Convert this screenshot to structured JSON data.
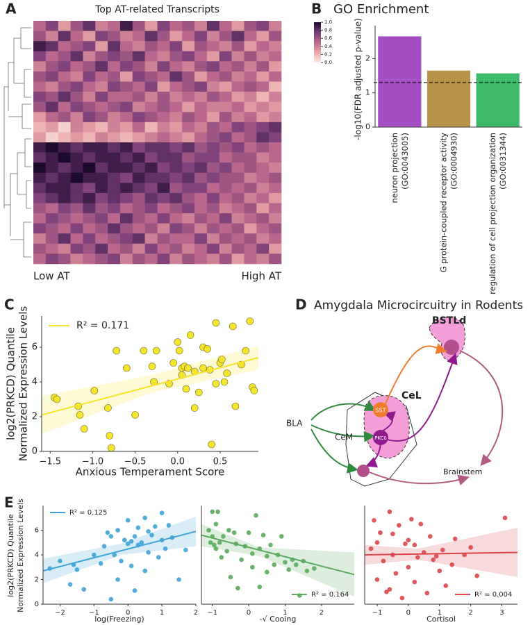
{
  "chart_data": [
    {
      "type": "heatmap",
      "panel_label": "A",
      "title": "Top AT-related Transcripts",
      "annotations": [
        "Low AT",
        "High AT"
      ],
      "clim": [
        0,
        1
      ],
      "cticks": [
        {
          "value": 0,
          "label": "0.0"
        },
        0.2,
        0.4,
        0.6,
        0.8,
        {
          "value": 1,
          "label": "1.0"
        }
      ],
      "colormap": [
        "#fcebe6",
        "#eaa7a8",
        "#b9678c",
        "#733a74",
        "#1d0b2c"
      ],
      "values": [
        [
          0.5,
          0.7,
          0.3,
          0.6,
          0.8,
          0.4,
          0.5,
          0.9,
          0.6,
          0.3,
          0.7,
          0.5,
          0.6,
          0.4,
          0.8,
          0.5,
          0.3,
          0.6,
          0.7,
          0.4
        ],
        [
          0.6,
          0.4,
          0.8,
          0.5,
          0.3,
          0.7,
          0.6,
          0.4,
          0.5,
          0.8,
          0.6,
          0.3,
          0.5,
          0.7,
          0.4,
          0.6,
          0.8,
          0.5,
          0.3,
          0.6
        ],
        [
          0.9,
          0.8,
          0.5,
          0.6,
          0.7,
          0.3,
          0.8,
          0.5,
          0.4,
          0.6,
          0.5,
          0.7,
          0.3,
          0.6,
          0.5,
          0.4,
          0.6,
          0.3,
          0.5,
          0.4
        ],
        [
          0.7,
          0.5,
          0.6,
          0.8,
          0.4,
          0.6,
          0.7,
          0.6,
          0.8,
          0.5,
          0.4,
          0.6,
          0.7,
          0.5,
          0.3,
          0.7,
          0.4,
          0.6,
          0.4,
          0.5
        ],
        [
          0.4,
          0.6,
          0.7,
          0.5,
          0.6,
          0.8,
          0.5,
          0.7,
          0.6,
          0.4,
          0.7,
          0.5,
          0.4,
          0.6,
          0.7,
          0.5,
          0.6,
          0.4,
          0.6,
          0.3
        ],
        [
          0.6,
          0.7,
          0.5,
          0.4,
          0.7,
          0.5,
          0.6,
          0.3,
          0.7,
          0.6,
          0.5,
          0.8,
          0.6,
          0.3,
          0.5,
          0.6,
          0.4,
          0.5,
          0.3,
          0.5
        ],
        [
          0.5,
          0.4,
          0.6,
          0.7,
          0.5,
          0.4,
          0.7,
          0.6,
          0.5,
          0.7,
          0.3,
          0.5,
          0.6,
          0.7,
          0.4,
          0.3,
          0.5,
          0.6,
          0.5,
          0.2
        ],
        [
          0.7,
          0.6,
          0.8,
          0.6,
          0.4,
          0.7,
          0.5,
          0.5,
          0.6,
          0.4,
          0.6,
          0.4,
          0.5,
          0.4,
          0.6,
          0.5,
          0.3,
          0.4,
          0.2,
          0.4
        ],
        [
          0.6,
          0.8,
          0.5,
          0.7,
          0.6,
          0.5,
          0.6,
          0.7,
          0.4,
          0.5,
          0.6,
          0.5,
          0.3,
          0.5,
          0.4,
          0.4,
          0.5,
          0.3,
          0.4,
          0.3
        ],
        [
          0.3,
          0.5,
          0.6,
          0.4,
          0.7,
          0.6,
          0.4,
          0.5,
          0.7,
          0.6,
          0.5,
          0.4,
          0.6,
          0.5,
          0.3,
          0.6,
          0.4,
          0.5,
          0.3,
          0.4
        ],
        [
          0.2,
          0.3,
          0.1,
          0.4,
          0.3,
          0.2,
          0.4,
          0.3,
          0.5,
          0.2,
          0.4,
          0.3,
          0.5,
          0.4,
          0.6,
          0.5,
          0.7,
          0.6,
          0.7,
          0.8
        ],
        [
          0.3,
          0.1,
          0.2,
          0.3,
          0.2,
          0.4,
          0.3,
          0.2,
          0.3,
          0.4,
          0.5,
          0.4,
          0.3,
          0.5,
          0.6,
          0.7,
          0.5,
          0.6,
          0.8,
          0.7
        ],
        [
          0.9,
          1,
          0.9,
          0.8,
          0.9,
          0.9,
          0.8,
          0.9,
          0.7,
          0.8,
          0.8,
          0.7,
          0.8,
          0.6,
          0.7,
          0.6,
          0.7,
          0.5,
          0.6,
          0.5
        ],
        [
          0.8,
          0.9,
          1,
          0.9,
          0.8,
          0.9,
          0.9,
          0.8,
          0.9,
          0.7,
          0.8,
          0.8,
          0.6,
          0.7,
          0.7,
          0.5,
          0.6,
          0.6,
          0.4,
          0.5
        ],
        [
          1,
          0.9,
          0.8,
          0.9,
          1,
          0.8,
          0.9,
          0.9,
          0.8,
          0.9,
          0.7,
          0.8,
          0.7,
          0.8,
          0.6,
          0.7,
          0.5,
          0.6,
          0.5,
          0.4
        ],
        [
          0.9,
          0.8,
          0.9,
          1,
          0.9,
          0.9,
          0.8,
          0.7,
          0.9,
          0.8,
          0.8,
          0.7,
          0.8,
          0.6,
          0.7,
          0.6,
          0.6,
          0.4,
          0.5,
          0.6
        ],
        [
          0.8,
          0.9,
          0.9,
          0.8,
          0.7,
          0.9,
          0.8,
          0.9,
          0.8,
          0.7,
          0.9,
          0.6,
          0.7,
          0.7,
          0.5,
          0.6,
          0.5,
          0.6,
          0.4,
          0.5
        ],
        [
          0.7,
          0.8,
          0.9,
          0.8,
          0.9,
          0.7,
          0.8,
          0.7,
          0.6,
          0.8,
          0.7,
          0.8,
          0.6,
          0.5,
          0.7,
          0.5,
          0.6,
          0.4,
          0.5,
          0.3
        ],
        [
          0.6,
          0.5,
          0.7,
          0.6,
          0.8,
          0.6,
          0.7,
          0.5,
          0.6,
          0.7,
          0.5,
          0.6,
          0.7,
          0.5,
          0.6,
          0.4,
          0.5,
          0.6,
          0.3,
          0.5
        ],
        [
          0.5,
          0.7,
          0.6,
          0.5,
          0.6,
          0.7,
          0.5,
          0.8,
          0.6,
          0.5,
          0.7,
          0.5,
          0.4,
          0.6,
          0.5,
          0.7,
          0.4,
          0.5,
          0.6,
          0.4
        ],
        [
          0.7,
          0.6,
          0.5,
          0.7,
          0.5,
          0.6,
          0.8,
          0.6,
          0.5,
          0.6,
          0.4,
          0.7,
          0.6,
          0.4,
          0.6,
          0.5,
          0.6,
          0.3,
          0.5,
          0.6
        ],
        [
          0.4,
          0.6,
          0.8,
          0.5,
          0.7,
          0.5,
          0.6,
          0.7,
          0.8,
          0.4,
          0.6,
          0.5,
          0.5,
          0.7,
          0.4,
          0.6,
          0.5,
          0.6,
          0.4,
          0.5
        ],
        [
          0.6,
          0.5,
          0.4,
          0.7,
          0.6,
          0.8,
          0.5,
          0.6,
          0.4,
          0.7,
          0.5,
          0.6,
          0.4,
          0.5,
          0.7,
          0.4,
          0.6,
          0.5,
          0.7,
          0.3
        ],
        [
          0.5,
          0.7,
          0.6,
          0.4,
          0.5,
          0.6,
          0.7,
          0.4,
          0.6,
          0.5,
          0.7,
          0.4,
          0.6,
          0.5,
          0.4,
          0.6,
          0.3,
          0.5,
          0.4,
          0.6
        ]
      ]
    },
    {
      "type": "bar",
      "panel_label": "B",
      "title": "GO Enrichment",
      "ylabel": "-log10(FDR adjusted p-value)",
      "categories": [
        [
          "neuron projection",
          "(GO:0043005)"
        ],
        [
          "G protein-coupled receptor activity",
          "(GO:0004930)"
        ],
        [
          "regulation of cell projection organization",
          "(GO:0031344)"
        ]
      ],
      "values": [
        2.65,
        1.65,
        1.57
      ],
      "colors": [
        "#a34fc2",
        "#b8944a",
        "#3dbb6b"
      ],
      "threshold": 1.3,
      "ylim": [
        0,
        2.8
      ],
      "yticks": [
        0,
        1,
        2
      ]
    },
    {
      "type": "scatter",
      "panel_label": "C",
      "xlabel": "Anxious Temperament Score",
      "ylabel": [
        "log2(PRKCD) Quantile",
        "Normalized Expression Levels"
      ],
      "legend_label": "R² = 0.171",
      "legend": "upper left",
      "color": "#f5e52e",
      "xlim": [
        -1.6,
        0.95
      ],
      "ylim": [
        0,
        7.8
      ],
      "xticks": [
        {
          "value": -1.5,
          "label": "−1.5"
        },
        {
          "value": -1,
          "label": "−1.0"
        },
        {
          "value": -0.5,
          "label": "−0.5"
        },
        {
          "value": 0,
          "label": "0.0"
        },
        0.5
      ],
      "yticks": [
        0,
        2,
        4,
        6
      ],
      "x": [
        -1.45,
        -1.42,
        -1.17,
        -1.15,
        -1.1,
        -0.98,
        -0.82,
        -0.78,
        -0.8,
        -0.72,
        -0.6,
        -0.5,
        -0.4,
        -0.3,
        -0.28,
        -0.25,
        -0.1,
        -0.05,
        0,
        0.02,
        0.05,
        0.05,
        0.08,
        0.1,
        0.12,
        0.15,
        0.2,
        0.2,
        0.25,
        0.3,
        0.3,
        0.35,
        0.38,
        0.4,
        0.45,
        0.45,
        0.5,
        0.52,
        0.55,
        0.58,
        0.65,
        0.68,
        0.75,
        0.8,
        0.85,
        0.88,
        0.9
      ],
      "y": [
        3.1,
        3,
        2.6,
        2.1,
        1.3,
        3.5,
        2.5,
        0.2,
        0.9,
        5.8,
        4.8,
        2.1,
        5.8,
        4.9,
        4,
        5.8,
        3.9,
        5.1,
        6.3,
        5.8,
        4.8,
        4.4,
        4.9,
        3.6,
        4.8,
        6.7,
        4.6,
        2.5,
        3.4,
        4.8,
        6,
        5.9,
        4.7,
        0.4,
        7.4,
        3.9,
        5.1,
        5.3,
        4,
        4.5,
        7.2,
        2.6,
        5,
        5.8,
        7.5,
        3.7,
        3.5
      ],
      "fit": {
        "x": [
          -1.6,
          0.95
        ],
        "y": [
          2.1,
          5.4
        ]
      },
      "band": {
        "x": [
          -1.6,
          -0.3,
          0.95
        ],
        "lower": [
          1.0,
          3.4,
          4.7
        ],
        "upper": [
          3.2,
          4.4,
          6.1
        ]
      }
    },
    {
      "type": "scatter",
      "panel_label": "E",
      "xlabel": "log(Freezing)",
      "ylabel": [
        "log2(PRKCD) Quantile",
        "Normalized Expression Levels"
      ],
      "legend_label": "R² = 0.125",
      "legend": "upper left",
      "color": "#3ea3d6",
      "xlim": [
        -2.5,
        2.0
      ],
      "ylim": [
        0,
        8
      ],
      "xticks": [
        {
          "value": -2,
          "label": "−2"
        },
        {
          "value": -1,
          "label": "−1"
        },
        0,
        1,
        2
      ],
      "yticks": [
        0,
        2,
        4,
        6
      ],
      "x": [
        -2.3,
        -2,
        -1.7,
        -1.6,
        -1.5,
        -1.3,
        -1,
        -0.8,
        -0.7,
        -0.6,
        -0.5,
        -0.4,
        -0.3,
        -0.3,
        -0.2,
        -0.1,
        0,
        0,
        0.1,
        0.2,
        0.2,
        0.3,
        0.3,
        0.4,
        0.5,
        0.5,
        0.6,
        0.7,
        0.8,
        0.9,
        1,
        1,
        1.1,
        1.2,
        1.3,
        1.5,
        1.7,
        -0.5,
        0.1,
        0.6
      ],
      "y": [
        2.9,
        3.5,
        1.6,
        3.2,
        2.8,
        1.2,
        4,
        3.3,
        4.7,
        5.8,
        5.5,
        4,
        2,
        6,
        3.5,
        5.2,
        4.9,
        6.8,
        5.1,
        5.5,
        1.1,
        6.2,
        4.8,
        5,
        7,
        2.7,
        4.2,
        5.6,
        6.3,
        3.8,
        5.2,
        7.4,
        4.5,
        6.4,
        5.4,
        2,
        4.4,
        0.4,
        3.1,
        5.9
      ],
      "fit": {
        "x": [
          -2.5,
          2.0
        ],
        "y": [
          2.7,
          5.9
        ]
      },
      "band": {
        "x": [
          -2.5,
          -0.2,
          2.0
        ],
        "lower": [
          1.7,
          4.0,
          4.7
        ],
        "upper": [
          3.7,
          4.9,
          7.1
        ]
      }
    },
    {
      "type": "scatter",
      "xlabel": "-√ Cooing",
      "legend_label": "R² = 0.164",
      "legend": "lower right",
      "color": "#5aaa5c",
      "xlim": [
        -1.3,
        2.9
      ],
      "ylim": [
        0,
        8
      ],
      "xticks": [
        {
          "value": -1,
          "label": "−1"
        },
        0,
        1,
        2
      ],
      "x": [
        -1.1,
        -1.05,
        -1,
        -1,
        -0.95,
        -0.9,
        -0.85,
        -0.8,
        -0.75,
        -0.7,
        -0.6,
        -0.55,
        -0.5,
        -0.4,
        -0.35,
        -0.3,
        -0.2,
        -0.1,
        0,
        0.1,
        0.1,
        0.2,
        0.3,
        0.4,
        0.5,
        0.5,
        0.6,
        0.7,
        0.8,
        0.9,
        1,
        1.1,
        1.2,
        1.3,
        1.4,
        1.5,
        1.6,
        1.8,
        -0.9,
        0.3
      ],
      "y": [
        6,
        5,
        7.5,
        5.5,
        4.8,
        6.5,
        7.5,
        5,
        3.8,
        5.5,
        4.3,
        6,
        2.2,
        5.8,
        4.9,
        1.3,
        3.6,
        4.7,
        5.8,
        4.1,
        3,
        7.2,
        4.5,
        5.6,
        3.9,
        2.6,
        4.8,
        3.2,
        4,
        5.5,
        3.4,
        2.8,
        3.6,
        3.2,
        0.7,
        3.5,
        2.7,
        2.9,
        4.5,
        1.4
      ],
      "fit": {
        "x": [
          -1.3,
          2.9
        ],
        "y": [
          5.6,
          2.4
        ]
      },
      "band": {
        "x": [
          -1.3,
          0.3,
          2.9
        ],
        "lower": [
          4.7,
          3.9,
          0.6
        ],
        "upper": [
          6.5,
          4.6,
          4.2
        ]
      }
    },
    {
      "type": "scatter",
      "xlabel": "Cortisol",
      "legend_label": "R² = 0.004",
      "legend": "lower right",
      "color": "#d9464a",
      "xlim": [
        -1.4,
        3.5
      ],
      "ylim": [
        0,
        8
      ],
      "xticks": [
        {
          "value": -1,
          "label": "−1"
        },
        0,
        1,
        2,
        3
      ],
      "x": [
        -1.2,
        -1.1,
        -1,
        -1,
        -0.9,
        -0.8,
        -0.7,
        -0.6,
        -0.5,
        -0.4,
        -0.3,
        -0.2,
        -0.1,
        0,
        0,
        0.1,
        0.2,
        0.3,
        0.4,
        0.5,
        0.6,
        0.7,
        0.8,
        1,
        1.1,
        1.2,
        1.4,
        1.5,
        1.8,
        2,
        2.2,
        3.1,
        -0.5,
        0.2,
        0.9,
        -0.6
      ],
      "y": [
        4.5,
        6.8,
        2,
        5,
        5.8,
        3.5,
        1,
        7.5,
        4,
        2.5,
        6.4,
        0.5,
        4.9,
        3,
        5.2,
        6.9,
        1.8,
        3.8,
        6.5,
        4.2,
        0.9,
        5.5,
        3.6,
        2.7,
        4.4,
        1.5,
        3.2,
        5.3,
        4,
        4.6,
        2.3,
        7,
        5.7,
        4.8,
        3.9,
        1.2
      ],
      "fit": {
        "x": [
          -1.4,
          3.5
        ],
        "y": [
          4.0,
          4.2
        ]
      },
      "band": {
        "x": [
          -1.4,
          0.3,
          3.5
        ],
        "lower": [
          3.2,
          3.6,
          2.2
        ],
        "upper": [
          4.8,
          4.5,
          6.2
        ]
      }
    }
  ],
  "diagram": {
    "panel_label": "D",
    "title": "Amygdala Microcircuitry in Rodents",
    "nodes": [
      "BSTLd",
      "CeL",
      "SST",
      "PKCδ",
      "BLA",
      "CeM",
      "Brainstem"
    ]
  }
}
